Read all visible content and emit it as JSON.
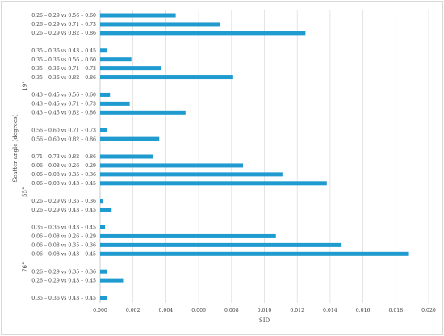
{
  "chart_data": {
    "type": "bar",
    "orientation": "horizontal",
    "xlabel": "SID",
    "ylabel": "Scatter angle (degrees)",
    "xlim": [
      0,
      0.02
    ],
    "x_ticks": [
      "0.000",
      "0.002",
      "0.004",
      "0.006",
      "0.008",
      "0.010",
      "0.012",
      "0.014",
      "0.016",
      "0.018",
      "0.020"
    ],
    "grid": true,
    "bar_color": "#1f9bd0",
    "groups": [
      "19°",
      "55°",
      "76°"
    ],
    "categories": [
      "0.26 – 0.29 vs 0.56 – 0.60",
      "0.26 – 0.29 vs 0.71 – 0.73",
      "0.26 – 0.29 vs 0.82 – 0.86",
      "",
      "0.35 – 0.36 vs 0.43 – 0.45",
      "0.35 – 0.36 vs 0.56 – 0.60",
      "0.35 – 0.36 vs 0.71 – 0.73",
      "0.35 – 0.36 vs 0.82 – 0.86",
      "",
      "0.43 – 0.45 vs 0.56 – 0.60",
      "0.43 – 0.45 vs 0.71 – 0.73",
      "0.43 – 0.45 vs 0.82 – 0.86",
      "",
      "0.56 – 0.60 vs 0.71 – 0.73",
      "0.56 – 0.60 vs 0.82 – 0.86",
      "",
      "0.71 – 0.73 vs 0.82 – 0.86",
      "0.06 – 0.08 vs 0.26 – 0.29",
      "0.06 – 0.08 vs 0.35 – 0.36",
      "0.06 – 0.08 vs 0.43 – 0.45",
      "",
      "0.26 – 0.29 vs 0.35 – 0.36",
      "0.26 – 0.29 vs 0.43 – 0.45",
      "",
      "0.35 – 0.36 vs 0.43 – 0.45",
      "0.06 – 0.08 vs 0.26 – 0.29",
      "0.06 – 0.08 vs 0.35 – 0.36",
      "0.06 – 0.08 vs 0.43 – 0.45",
      "",
      "0.26 – 0.29 vs 0.35 – 0.36",
      "0.26 – 0.29 vs 0.43 – 0.45",
      "",
      "0.35 – 0.36 vs 0.43 – 0.45"
    ],
    "values": [
      0.0046,
      0.0073,
      0.0125,
      null,
      0.0004,
      0.0019,
      0.0037,
      0.0081,
      null,
      0.0006,
      0.0018,
      0.0052,
      null,
      0.0004,
      0.0036,
      null,
      0.0032,
      0.0087,
      0.0111,
      0.0138,
      null,
      0.0002,
      0.0007,
      null,
      0.0003,
      0.0107,
      0.0147,
      0.0188,
      null,
      0.0004,
      0.0014,
      null,
      0.0004
    ],
    "group_ranges": [
      [
        0,
        16
      ],
      [
        17,
        23
      ],
      [
        25,
        32
      ]
    ]
  }
}
